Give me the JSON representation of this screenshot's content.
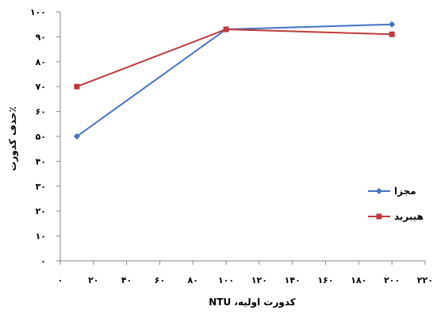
{
  "chart_data": {
    "type": "line",
    "title": "",
    "xlabel": "کدورت اولیه، NTU",
    "ylabel": "٪حذف کدورت",
    "xlim": [
      0,
      220
    ],
    "ylim": [
      0,
      100
    ],
    "x_ticks": [
      0,
      20,
      40,
      60,
      80,
      100,
      120,
      140,
      160,
      180,
      200,
      220
    ],
    "x_tick_labels": [
      "۰",
      "۲۰",
      "۴۰",
      "۶۰",
      "۸۰",
      "۱۰۰",
      "۱۲۰",
      "۱۴۰",
      "۱۶۰",
      "۱۸۰",
      "۲۰۰",
      "۲۲۰"
    ],
    "y_ticks": [
      0,
      10,
      20,
      30,
      40,
      50,
      60,
      70,
      80,
      90,
      100
    ],
    "y_tick_labels": [
      "۰",
      "۱۰",
      "۲۰",
      "۳۰",
      "۴۰",
      "۵۰",
      "۶۰",
      "۷۰",
      "۸۰",
      "۹۰",
      "۱۰۰"
    ],
    "grid": false,
    "legend_position": "right",
    "series": [
      {
        "name": "مجزا",
        "color": "#4472C4",
        "marker": "diamond",
        "x": [
          10,
          100,
          200
        ],
        "y": [
          50,
          93,
          95
        ]
      },
      {
        "name": "هیبرید",
        "color": "#C0393B",
        "marker": "square",
        "x": [
          10,
          100,
          200
        ],
        "y": [
          70,
          93,
          91
        ]
      }
    ]
  }
}
